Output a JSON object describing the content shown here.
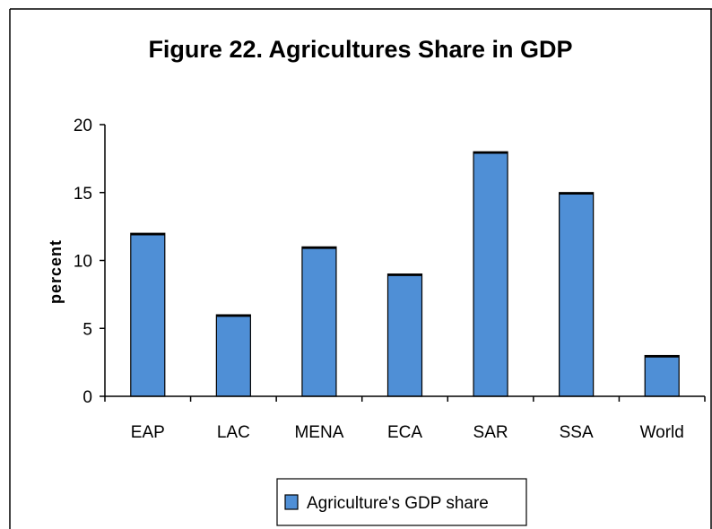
{
  "chart_data": {
    "type": "bar",
    "title": "Figure 22. Agricultures Share in GDP",
    "ylabel": "percent",
    "xlabel": "",
    "categories": [
      "EAP",
      "LAC",
      "MENA",
      "ECA",
      "SAR",
      "SSA",
      "World"
    ],
    "series": [
      {
        "name": "Agriculture's GDP share",
        "values": [
          12,
          6,
          11,
          9,
          18,
          15,
          3
        ]
      }
    ],
    "ylim": [
      0,
      20
    ],
    "yticks": [
      0,
      5,
      10,
      15,
      20
    ],
    "grid": false,
    "legend": "bottom",
    "colors": {
      "bar": "#4f8fd6",
      "bar_edge": "#000000",
      "axis": "#000000"
    }
  }
}
